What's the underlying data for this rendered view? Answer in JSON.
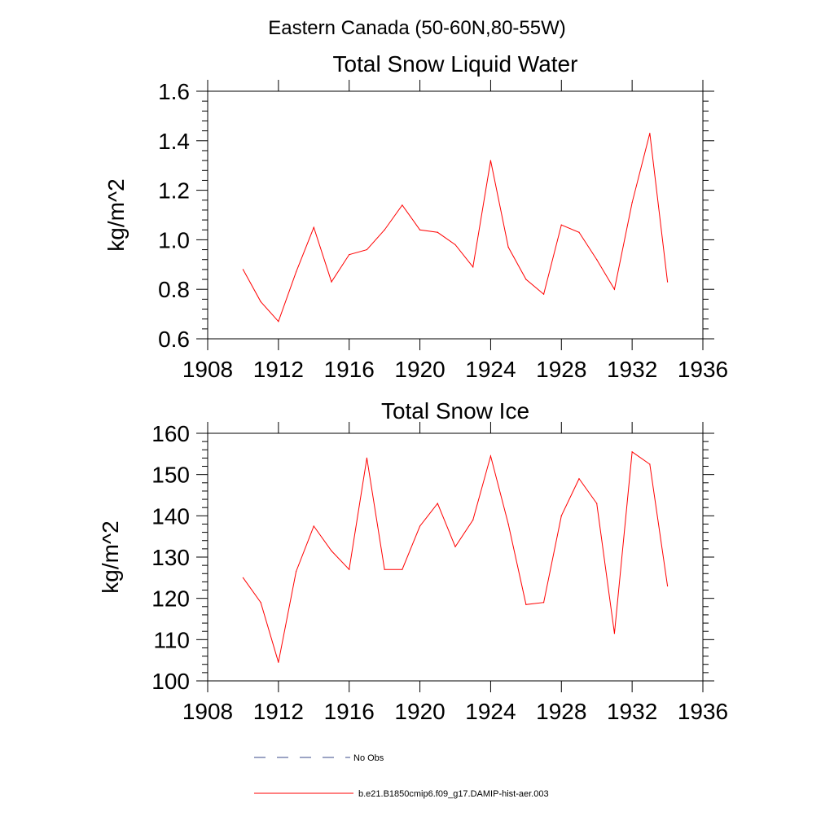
{
  "figure_title": "Eastern Canada (50-60N,80-55W)",
  "colors": {
    "series": "#ff0000",
    "no_obs": "#3a4a8a",
    "axis": "#000000"
  },
  "legend": {
    "placement": "bottom",
    "entries": [
      {
        "label": "No Obs",
        "style": "dashed",
        "color": "#3a4a8a"
      },
      {
        "label": "b.e21.B1850cmip6.f09_g17.DAMIP-hist-aer.003",
        "style": "solid",
        "color": "#ff0000"
      }
    ]
  },
  "chart_data": [
    {
      "type": "line",
      "title": "Total Snow Liquid Water",
      "xlabel": "",
      "ylabel": "kg/m^2",
      "xlim": [
        1908,
        1936
      ],
      "ylim": [
        0.6,
        1.6
      ],
      "x_ticks": [
        1908,
        1912,
        1916,
        1920,
        1924,
        1928,
        1932,
        1936
      ],
      "x_tick_labels": [
        "1908",
        "1912",
        "1916",
        "1920",
        "1924",
        "1928",
        "1932",
        "1936"
      ],
      "y_ticks": [
        0.6,
        0.8,
        1.0,
        1.2,
        1.4,
        1.6
      ],
      "y_tick_labels": [
        "0.6",
        "0.8",
        "1.0",
        "1.2",
        "1.4",
        "1.6"
      ],
      "grid": false,
      "x": [
        1910,
        1911,
        1912,
        1913,
        1914,
        1915,
        1916,
        1917,
        1918,
        1919,
        1920,
        1921,
        1922,
        1923,
        1924,
        1925,
        1926,
        1927,
        1928,
        1929,
        1930,
        1931,
        1932,
        1933,
        1934
      ],
      "series": [
        {
          "values": [
            0.88,
            0.75,
            0.67,
            0.87,
            1.05,
            0.83,
            0.94,
            0.96,
            1.04,
            1.14,
            1.04,
            1.03,
            0.98,
            0.89,
            1.32,
            0.97,
            0.84,
            0.78,
            1.06,
            1.03,
            0.92,
            0.8,
            1.15,
            1.43,
            0.83
          ]
        }
      ]
    },
    {
      "type": "line",
      "title": "Total Snow Ice",
      "xlabel": "",
      "ylabel": "kg/m^2",
      "xlim": [
        1908,
        1936
      ],
      "ylim": [
        100,
        160
      ],
      "x_ticks": [
        1908,
        1912,
        1916,
        1920,
        1924,
        1928,
        1932,
        1936
      ],
      "x_tick_labels": [
        "1908",
        "1912",
        "1916",
        "1920",
        "1924",
        "1928",
        "1932",
        "1936"
      ],
      "y_ticks": [
        100,
        110,
        120,
        130,
        140,
        150,
        160
      ],
      "y_tick_labels": [
        "100",
        "110",
        "120",
        "130",
        "140",
        "150",
        "160"
      ],
      "grid": false,
      "x": [
        1910,
        1911,
        1912,
        1913,
        1914,
        1915,
        1916,
        1917,
        1918,
        1919,
        1920,
        1921,
        1922,
        1923,
        1924,
        1925,
        1926,
        1927,
        1928,
        1929,
        1930,
        1931,
        1932,
        1933,
        1934
      ],
      "series": [
        {
          "values": [
            125.0,
            119.0,
            104.5,
            126.5,
            137.5,
            131.5,
            127.0,
            154.0,
            127.0,
            127.0,
            137.5,
            143.0,
            132.5,
            139.0,
            154.5,
            138.0,
            118.5,
            119.0,
            140.0,
            149.0,
            143.0,
            111.5,
            155.5,
            152.5,
            123.0
          ]
        }
      ]
    }
  ]
}
